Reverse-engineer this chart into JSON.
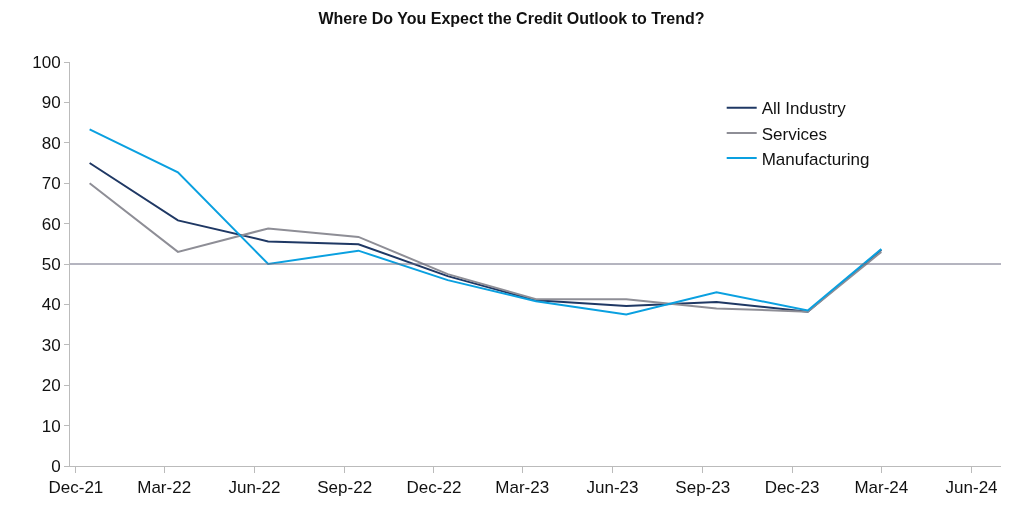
{
  "chart_data": {
    "type": "line",
    "title": "Where Do You Expect the Credit Outlook to Trend?",
    "x": [
      "2021-12-15",
      "2022-03-15",
      "2022-06-15",
      "2022-09-15",
      "2022-12-15",
      "2023-03-15",
      "2023-06-15",
      "2023-09-15",
      "2023-12-17",
      "2024-03-01"
    ],
    "series": [
      {
        "name": "All Industry",
        "color": "#1f3864",
        "values": [
          75,
          60.8,
          55.6,
          54.9,
          47,
          41,
          39.6,
          40.6,
          38.2,
          53.5
        ]
      },
      {
        "name": "Services",
        "color": "#8e8e96",
        "values": [
          70,
          53,
          58.8,
          56.7,
          47.5,
          41.3,
          41.3,
          39,
          38.2,
          53
        ]
      },
      {
        "name": "Manufacturing",
        "color": "#0aa0e0",
        "values": [
          83.3,
          72.7,
          50,
          53.3,
          46,
          40.8,
          37.5,
          43,
          38.5,
          53.7
        ]
      }
    ],
    "xlim": [
      "2021-11-25",
      "2024-07-01"
    ],
    "xticks": [
      {
        "value": "2021-12-01",
        "label": "Dec-21"
      },
      {
        "value": "2022-03-01",
        "label": "Mar-22"
      },
      {
        "value": "2022-06-01",
        "label": "Jun-22"
      },
      {
        "value": "2022-09-01",
        "label": "Sep-22"
      },
      {
        "value": "2022-12-01",
        "label": "Dec-22"
      },
      {
        "value": "2023-03-01",
        "label": "Mar-23"
      },
      {
        "value": "2023-06-01",
        "label": "Jun-23"
      },
      {
        "value": "2023-09-01",
        "label": "Sep-23"
      },
      {
        "value": "2023-12-01",
        "label": "Dec-23"
      },
      {
        "value": "2024-03-01",
        "label": "Mar-24"
      },
      {
        "value": "2024-06-01",
        "label": "Jun-24"
      }
    ],
    "ylim": [
      0,
      100
    ],
    "yticks": [
      0,
      10,
      20,
      30,
      40,
      50,
      60,
      70,
      80,
      90,
      100
    ],
    "ref_lines": [
      {
        "axis": "y",
        "value": 50,
        "color": "#6b6b80"
      }
    ],
    "grid": false,
    "legend": "top right",
    "marker": "none",
    "line_style": "solid"
  }
}
